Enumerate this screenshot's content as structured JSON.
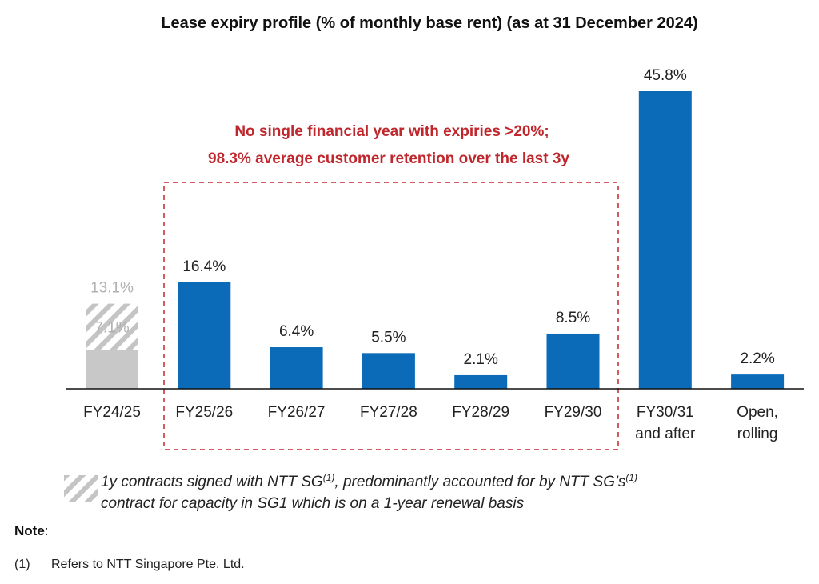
{
  "chart_data": {
    "type": "bar",
    "title": "Lease expiry profile (% of monthly base rent) (as at 31 December 2024)",
    "categories": [
      [
        "FY24/25"
      ],
      [
        "FY25/26"
      ],
      [
        "FY26/27"
      ],
      [
        "FY27/28"
      ],
      [
        "FY28/29"
      ],
      [
        "FY29/30"
      ],
      [
        "FY30/31",
        "and after"
      ],
      [
        "Open,",
        "rolling"
      ]
    ],
    "values": [
      13.1,
      16.4,
      6.4,
      5.5,
      2.1,
      8.5,
      45.8,
      2.2
    ],
    "labels": [
      "13.1%",
      "16.4%",
      "6.4%",
      "5.5%",
      "2.1%",
      "8.5%",
      "45.8%",
      "2.2%"
    ],
    "fy2425_hatched": {
      "value": 7.1,
      "label": "7.1%"
    },
    "ylim": [
      0,
      46
    ],
    "grid": false,
    "colors": {
      "bar": "#0b6bb8",
      "gray_bar": "#c8c8c8",
      "gray_label": "#b0b0b0",
      "annotation": "#c0272d",
      "hatch": "#bdbdbd"
    },
    "annotation": [
      "No single financial year with expiries >20%;",
      "98.3% average customer retention over the last 3y"
    ],
    "legend": {
      "icon": "hatch-swatch",
      "line1_a": "1y contracts signed with NTT SG",
      "line1_sup": "(1)",
      "line1_b": ", predominantly accounted for by NTT SG’s",
      "line1_sup2": "(1)",
      "line2": "contract for capacity in SG1 which is on a 1-year renewal basis"
    }
  },
  "note": {
    "heading": "Note",
    "colon": ":",
    "marker": "(1)",
    "text": "Refers to NTT Singapore Pte. Ltd."
  }
}
